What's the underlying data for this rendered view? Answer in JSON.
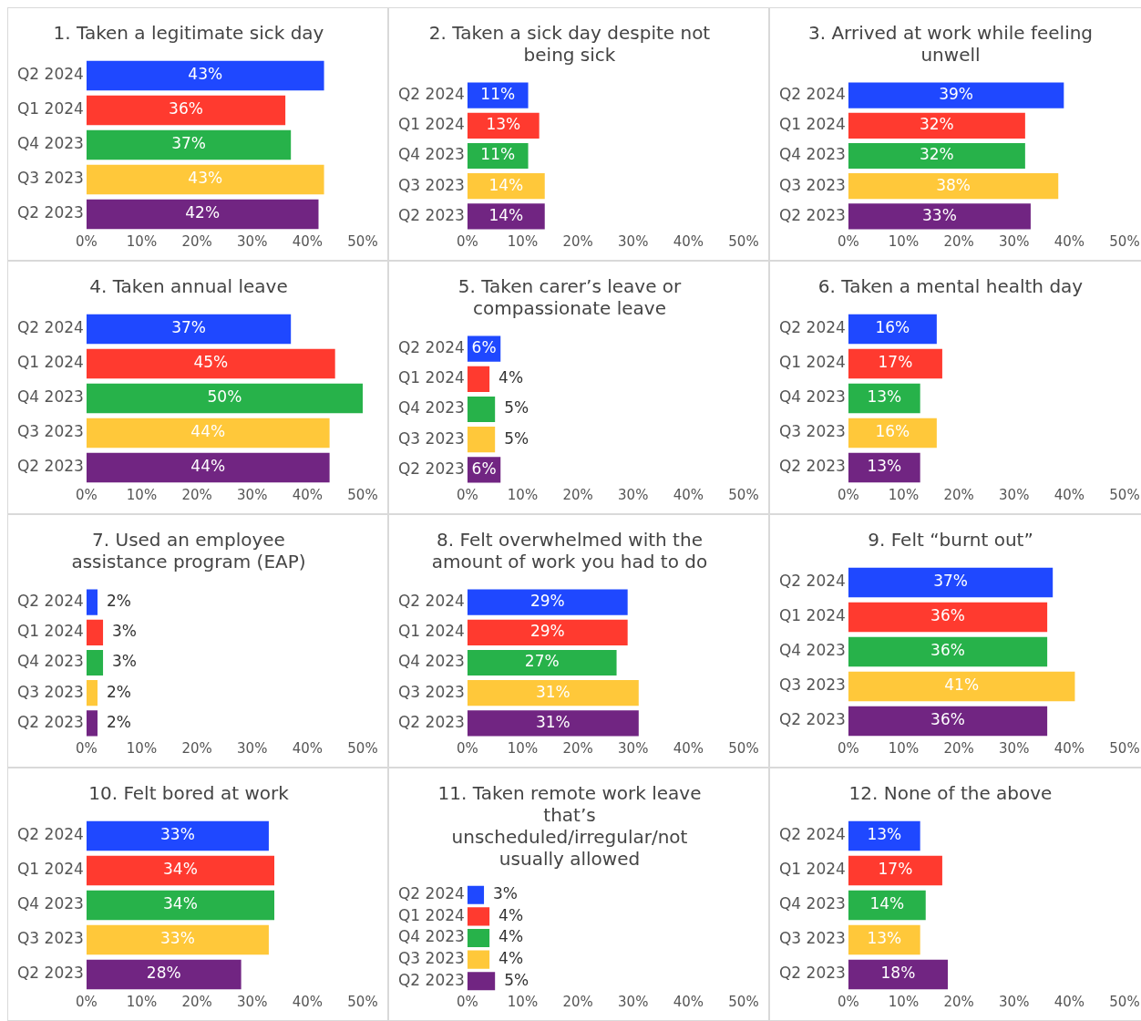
{
  "chart_data": [
    {
      "type": "bar",
      "orientation": "horizontal",
      "title": "1. Taken a legitimate sick day",
      "categories": [
        "Q2 2024",
        "Q1 2024",
        "Q4 2023",
        "Q3 2023",
        "Q2 2023"
      ],
      "values": [
        43,
        36,
        37,
        43,
        42
      ],
      "value_labels": [
        "43%",
        "36%",
        "37%",
        "43%",
        "42%"
      ],
      "colors": [
        "#1f48ff",
        "#ff3a2f",
        "#27b24a",
        "#ffc83a",
        "#712582"
      ],
      "xlim": [
        0,
        50
      ],
      "xticks": [
        {
          "value": 0,
          "label": "0%"
        },
        {
          "value": 10,
          "label": "10%"
        },
        {
          "value": 20,
          "label": "20%"
        },
        {
          "value": 30,
          "label": "30%"
        },
        {
          "value": 40,
          "label": "40%"
        },
        {
          "value": 50,
          "label": "50%"
        }
      ]
    },
    {
      "type": "bar",
      "orientation": "horizontal",
      "title": "2. Taken a sick day despite not being sick",
      "categories": [
        "Q2 2024",
        "Q1 2024",
        "Q4 2023",
        "Q3 2023",
        "Q2 2023"
      ],
      "values": [
        11,
        13,
        11,
        14,
        14
      ],
      "value_labels": [
        "11%",
        "13%",
        "11%",
        "14%",
        "14%"
      ],
      "colors": [
        "#1f48ff",
        "#ff3a2f",
        "#27b24a",
        "#ffc83a",
        "#712582"
      ],
      "xlim": [
        0,
        50
      ],
      "xticks": [
        {
          "value": 0,
          "label": "0%"
        },
        {
          "value": 10,
          "label": "10%"
        },
        {
          "value": 20,
          "label": "20%"
        },
        {
          "value": 30,
          "label": "30%"
        },
        {
          "value": 40,
          "label": "40%"
        },
        {
          "value": 50,
          "label": "50%"
        }
      ]
    },
    {
      "type": "bar",
      "orientation": "horizontal",
      "title": "3. Arrived at work while feeling unwell",
      "categories": [
        "Q2 2024",
        "Q1 2024",
        "Q4 2023",
        "Q3 2023",
        "Q2 2023"
      ],
      "values": [
        39,
        32,
        32,
        38,
        33
      ],
      "value_labels": [
        "39%",
        "32%",
        "32%",
        "38%",
        "33%"
      ],
      "colors": [
        "#1f48ff",
        "#ff3a2f",
        "#27b24a",
        "#ffc83a",
        "#712582"
      ],
      "xlim": [
        0,
        50
      ],
      "xticks": [
        {
          "value": 0,
          "label": "0%"
        },
        {
          "value": 10,
          "label": "10%"
        },
        {
          "value": 20,
          "label": "20%"
        },
        {
          "value": 30,
          "label": "30%"
        },
        {
          "value": 40,
          "label": "40%"
        },
        {
          "value": 50,
          "label": "50%"
        }
      ]
    },
    {
      "type": "bar",
      "orientation": "horizontal",
      "title": "4. Taken annual leave",
      "categories": [
        "Q2 2024",
        "Q1 2024",
        "Q4 2023",
        "Q3 2023",
        "Q2 2023"
      ],
      "values": [
        37,
        45,
        50,
        44,
        44
      ],
      "value_labels": [
        "37%",
        "45%",
        "50%",
        "44%",
        "44%"
      ],
      "colors": [
        "#1f48ff",
        "#ff3a2f",
        "#27b24a",
        "#ffc83a",
        "#712582"
      ],
      "xlim": [
        0,
        50
      ],
      "xticks": [
        {
          "value": 0,
          "label": "0%"
        },
        {
          "value": 10,
          "label": "10%"
        },
        {
          "value": 20,
          "label": "20%"
        },
        {
          "value": 30,
          "label": "30%"
        },
        {
          "value": 40,
          "label": "40%"
        },
        {
          "value": 50,
          "label": "50%"
        }
      ]
    },
    {
      "type": "bar",
      "orientation": "horizontal",
      "title": "5. Taken carer’s leave or compassionate leave",
      "categories": [
        "Q2 2024",
        "Q1 2024",
        "Q4 2023",
        "Q3 2023",
        "Q2 2023"
      ],
      "values": [
        6,
        4,
        5,
        5,
        6
      ],
      "value_labels": [
        "6%",
        "4%",
        "5%",
        "5%",
        "6%"
      ],
      "colors": [
        "#1f48ff",
        "#ff3a2f",
        "#27b24a",
        "#ffc83a",
        "#712582"
      ],
      "xlim": [
        0,
        50
      ],
      "xticks": [
        {
          "value": 0,
          "label": "0%"
        },
        {
          "value": 10,
          "label": "10%"
        },
        {
          "value": 20,
          "label": "20%"
        },
        {
          "value": 30,
          "label": "30%"
        },
        {
          "value": 40,
          "label": "40%"
        },
        {
          "value": 50,
          "label": "50%"
        }
      ]
    },
    {
      "type": "bar",
      "orientation": "horizontal",
      "title": "6. Taken a mental health day",
      "categories": [
        "Q2 2024",
        "Q1 2024",
        "Q4 2023",
        "Q3 2023",
        "Q2 2023"
      ],
      "values": [
        16,
        17,
        13,
        16,
        13
      ],
      "value_labels": [
        "16%",
        "17%",
        "13%",
        "16%",
        "13%"
      ],
      "colors": [
        "#1f48ff",
        "#ff3a2f",
        "#27b24a",
        "#ffc83a",
        "#712582"
      ],
      "xlim": [
        0,
        50
      ],
      "xticks": [
        {
          "value": 0,
          "label": "0%"
        },
        {
          "value": 10,
          "label": "10%"
        },
        {
          "value": 20,
          "label": "20%"
        },
        {
          "value": 30,
          "label": "30%"
        },
        {
          "value": 40,
          "label": "40%"
        },
        {
          "value": 50,
          "label": "50%"
        }
      ]
    },
    {
      "type": "bar",
      "orientation": "horizontal",
      "title": "7. Used an employee assistance program (EAP)",
      "categories": [
        "Q2 2024",
        "Q1 2024",
        "Q4 2023",
        "Q3 2023",
        "Q2 2023"
      ],
      "values": [
        2,
        3,
        3,
        2,
        2
      ],
      "value_labels": [
        "2%",
        "3%",
        "3%",
        "2%",
        "2%"
      ],
      "colors": [
        "#1f48ff",
        "#ff3a2f",
        "#27b24a",
        "#ffc83a",
        "#712582"
      ],
      "xlim": [
        0,
        50
      ],
      "xticks": [
        {
          "value": 0,
          "label": "0%"
        },
        {
          "value": 10,
          "label": "10%"
        },
        {
          "value": 20,
          "label": "20%"
        },
        {
          "value": 30,
          "label": "30%"
        },
        {
          "value": 40,
          "label": "40%"
        },
        {
          "value": 50,
          "label": "50%"
        }
      ]
    },
    {
      "type": "bar",
      "orientation": "horizontal",
      "title": "8. Felt overwhelmed with the amount of work you had to do",
      "categories": [
        "Q2 2024",
        "Q1 2024",
        "Q4 2023",
        "Q3 2023",
        "Q2 2023"
      ],
      "values": [
        29,
        29,
        27,
        31,
        31
      ],
      "value_labels": [
        "29%",
        "29%",
        "27%",
        "31%",
        "31%"
      ],
      "colors": [
        "#1f48ff",
        "#ff3a2f",
        "#27b24a",
        "#ffc83a",
        "#712582"
      ],
      "xlim": [
        0,
        50
      ],
      "xticks": [
        {
          "value": 0,
          "label": "0%"
        },
        {
          "value": 10,
          "label": "10%"
        },
        {
          "value": 20,
          "label": "20%"
        },
        {
          "value": 30,
          "label": "30%"
        },
        {
          "value": 40,
          "label": "40%"
        },
        {
          "value": 50,
          "label": "50%"
        }
      ]
    },
    {
      "type": "bar",
      "orientation": "horizontal",
      "title": "9. Felt “burnt out”",
      "categories": [
        "Q2 2024",
        "Q1 2024",
        "Q4 2023",
        "Q3 2023",
        "Q2 2023"
      ],
      "values": [
        37,
        36,
        36,
        41,
        36
      ],
      "value_labels": [
        "37%",
        "36%",
        "36%",
        "41%",
        "36%"
      ],
      "colors": [
        "#1f48ff",
        "#ff3a2f",
        "#27b24a",
        "#ffc83a",
        "#712582"
      ],
      "xlim": [
        0,
        50
      ],
      "xticks": [
        {
          "value": 0,
          "label": "0%"
        },
        {
          "value": 10,
          "label": "10%"
        },
        {
          "value": 20,
          "label": "20%"
        },
        {
          "value": 30,
          "label": "30%"
        },
        {
          "value": 40,
          "label": "40%"
        },
        {
          "value": 50,
          "label": "50%"
        }
      ]
    },
    {
      "type": "bar",
      "orientation": "horizontal",
      "title": "10. Felt bored at work",
      "categories": [
        "Q2 2024",
        "Q1 2024",
        "Q4 2023",
        "Q3 2023",
        "Q2 2023"
      ],
      "values": [
        33,
        34,
        34,
        33,
        28
      ],
      "value_labels": [
        "33%",
        "34%",
        "34%",
        "33%",
        "28%"
      ],
      "colors": [
        "#1f48ff",
        "#ff3a2f",
        "#27b24a",
        "#ffc83a",
        "#712582"
      ],
      "xlim": [
        0,
        50
      ],
      "xticks": [
        {
          "value": 0,
          "label": "0%"
        },
        {
          "value": 10,
          "label": "10%"
        },
        {
          "value": 20,
          "label": "20%"
        },
        {
          "value": 30,
          "label": "30%"
        },
        {
          "value": 40,
          "label": "40%"
        },
        {
          "value": 50,
          "label": "50%"
        }
      ]
    },
    {
      "type": "bar",
      "orientation": "horizontal",
      "title": "11. Taken remote work leave that’s unscheduled/irregular/not usually allowed",
      "categories": [
        "Q2 2024",
        "Q1 2024",
        "Q4 2023",
        "Q3 2023",
        "Q2 2023"
      ],
      "values": [
        3,
        4,
        4,
        4,
        5
      ],
      "value_labels": [
        "3%",
        "4%",
        "4%",
        "4%",
        "5%"
      ],
      "colors": [
        "#1f48ff",
        "#ff3a2f",
        "#27b24a",
        "#ffc83a",
        "#712582"
      ],
      "xlim": [
        0,
        50
      ],
      "xticks": [
        {
          "value": 0,
          "label": "0%"
        },
        {
          "value": 10,
          "label": "10%"
        },
        {
          "value": 20,
          "label": "20%"
        },
        {
          "value": 30,
          "label": "30%"
        },
        {
          "value": 40,
          "label": "40%"
        },
        {
          "value": 50,
          "label": "50%"
        }
      ]
    },
    {
      "type": "bar",
      "orientation": "horizontal",
      "title": "12. None of the above",
      "categories": [
        "Q2 2024",
        "Q1 2024",
        "Q4 2023",
        "Q3 2023",
        "Q2 2023"
      ],
      "values": [
        13,
        17,
        14,
        13,
        18
      ],
      "value_labels": [
        "13%",
        "17%",
        "14%",
        "13%",
        "18%"
      ],
      "colors": [
        "#1f48ff",
        "#ff3a2f",
        "#27b24a",
        "#ffc83a",
        "#712582"
      ],
      "xlim": [
        0,
        50
      ],
      "xticks": [
        {
          "value": 0,
          "label": "0%"
        },
        {
          "value": 10,
          "label": "10%"
        },
        {
          "value": 20,
          "label": "20%"
        },
        {
          "value": 30,
          "label": "30%"
        },
        {
          "value": 40,
          "label": "40%"
        },
        {
          "value": 50,
          "label": "50%"
        }
      ]
    }
  ]
}
